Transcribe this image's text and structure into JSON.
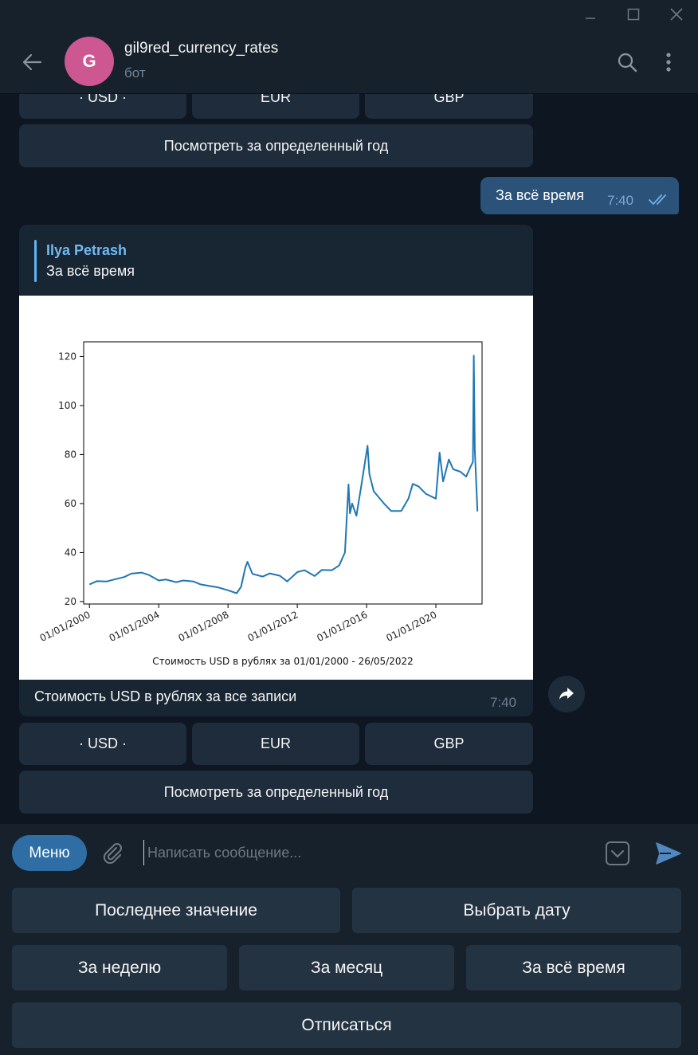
{
  "window": {
    "minimize_icon": "minimize-icon",
    "maximize_icon": "maximize-icon",
    "close_icon": "close-icon"
  },
  "header": {
    "avatar_letter": "G",
    "avatar_color": "#cc5791",
    "title": "gil9red_currency_rates",
    "status": "бот"
  },
  "top_keyboard": {
    "buttons": [
      "· USD ·",
      "EUR",
      "GBP"
    ],
    "wide_button": "Посмотреть за определенный год"
  },
  "outgoing": {
    "text": "За всё время",
    "time": "7:40"
  },
  "incoming": {
    "reply_author": "Ilya Petrash",
    "reply_text": "За всё время",
    "caption": "Стоимость USD в рублях за все записи",
    "time": "7:40"
  },
  "chart_data": {
    "type": "line",
    "title": "",
    "xlabel": "Стоимость USD в рублях за 01/01/2000 - 26/05/2022",
    "ylabel": "",
    "x_ticks": [
      "01/01/2000",
      "01/01/2004",
      "01/01/2008",
      "01/01/2012",
      "01/01/2016",
      "01/01/2020"
    ],
    "y_ticks": [
      20,
      40,
      60,
      80,
      100,
      120
    ],
    "ylim": [
      19,
      126
    ],
    "xlim": [
      "1999-09-01",
      "2022-09-01"
    ],
    "grid": false,
    "color": "#1f77b4",
    "series": [
      {
        "x": [
          "2000-01-01",
          "2000-06-01",
          "2001-01-01",
          "2001-06-01",
          "2002-01-01",
          "2002-06-01",
          "2003-01-01",
          "2003-06-01",
          "2004-01-01",
          "2004-06-01",
          "2005-01-01",
          "2005-06-01",
          "2006-01-01",
          "2006-06-01",
          "2007-01-01",
          "2007-06-01",
          "2008-01-01",
          "2008-07-01",
          "2008-10-01",
          "2009-01-01",
          "2009-02-15",
          "2009-06-01",
          "2010-01-01",
          "2010-06-01",
          "2011-01-01",
          "2011-06-01",
          "2012-01-01",
          "2012-06-01",
          "2013-01-01",
          "2013-06-01",
          "2014-01-01",
          "2014-06-01",
          "2014-10-01",
          "2014-12-16",
          "2015-01-15",
          "2015-03-01",
          "2015-06-01",
          "2015-09-01",
          "2016-01-21",
          "2016-03-01",
          "2016-06-01",
          "2017-01-01",
          "2017-06-01",
          "2018-01-01",
          "2018-06-01",
          "2018-09-01",
          "2019-01-01",
          "2019-06-01",
          "2020-01-01",
          "2020-03-20",
          "2020-06-01",
          "2020-10-01",
          "2021-01-01",
          "2021-06-01",
          "2021-10-01",
          "2022-01-01",
          "2022-02-20",
          "2022-03-10",
          "2022-04-01",
          "2022-05-26"
        ],
        "values": [
          27.0,
          28.3,
          28.2,
          29.0,
          30.0,
          31.4,
          31.8,
          30.9,
          28.6,
          29.0,
          27.9,
          28.6,
          28.2,
          27.0,
          26.3,
          25.8,
          24.6,
          23.4,
          26.0,
          34.0,
          36.2,
          31.3,
          30.2,
          31.5,
          30.5,
          28.2,
          32.0,
          32.8,
          30.4,
          32.9,
          32.8,
          34.7,
          40.0,
          67.8,
          56.0,
          60.0,
          55.0,
          66.0,
          83.6,
          72.0,
          65.0,
          60.0,
          57.0,
          57.0,
          62.0,
          68.0,
          67.0,
          64.0,
          62.0,
          80.8,
          69.0,
          78.0,
          74.0,
          73.0,
          71.0,
          75.0,
          77.0,
          120.4,
          82.0,
          56.8
        ]
      }
    ]
  },
  "bottom_keyboard": {
    "buttons": [
      "· USD ·",
      "EUR",
      "GBP"
    ],
    "wide_button": "Посмотреть за определенный год"
  },
  "composer": {
    "menu_label": "Меню",
    "placeholder": "Написать сообщение..."
  },
  "reply_keyboard": {
    "row1": [
      "Последнее значение",
      "Выбрать дату"
    ],
    "row2": [
      "За неделю",
      "За месяц",
      "За всё время"
    ],
    "row3": [
      "Отписаться"
    ]
  }
}
